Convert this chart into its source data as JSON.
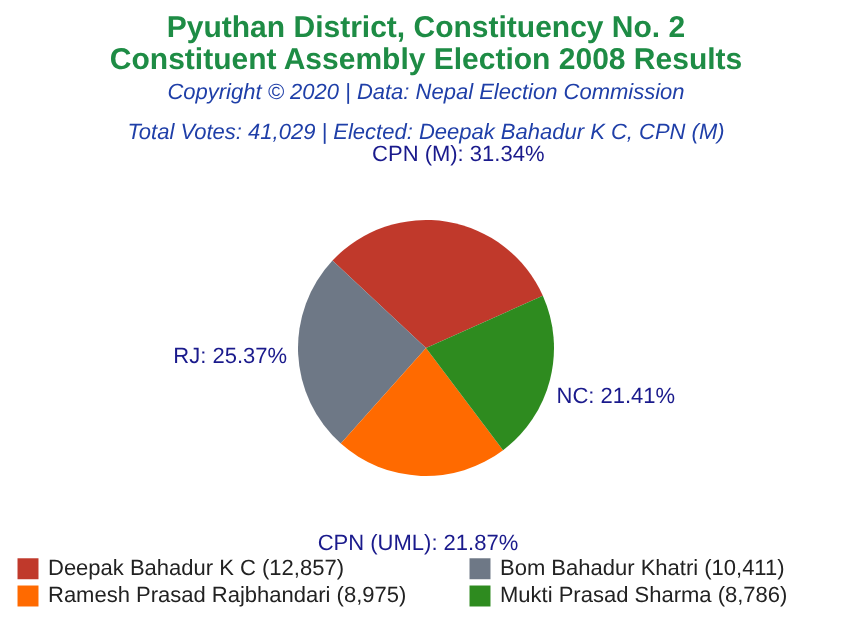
{
  "chart_data": {
    "type": "pie",
    "title": "Pyuthan District, Constituency No. 2\nConstituent Assembly Election 2008 Results",
    "subtitle": "Copyright © 2020 | Data: Nepal Election Commission",
    "annotations": [
      "Total Votes: 41,029 | Elected: Deepak Bahadur K C, CPN (M)"
    ],
    "categories": [
      "Deepak Bahadur K C (12,857)",
      "Bom Bahadur Khatri (10,411)",
      "Ramesh Prasad Rajbhandari (8,975)",
      "Mukti Prasad Sharma (8,786)"
    ],
    "values": [
      31.34,
      25.37,
      21.87,
      21.41
    ],
    "value_labels": [
      "CPN (M): 31.34%",
      "RJ: 25.37%",
      "CPN (UML): 21.87%",
      "NC: 21.41%"
    ],
    "colors": [
      "#c0392b",
      "#6e7886",
      "#ff6a00",
      "#2e8b1f"
    ],
    "legend": "bottom"
  }
}
